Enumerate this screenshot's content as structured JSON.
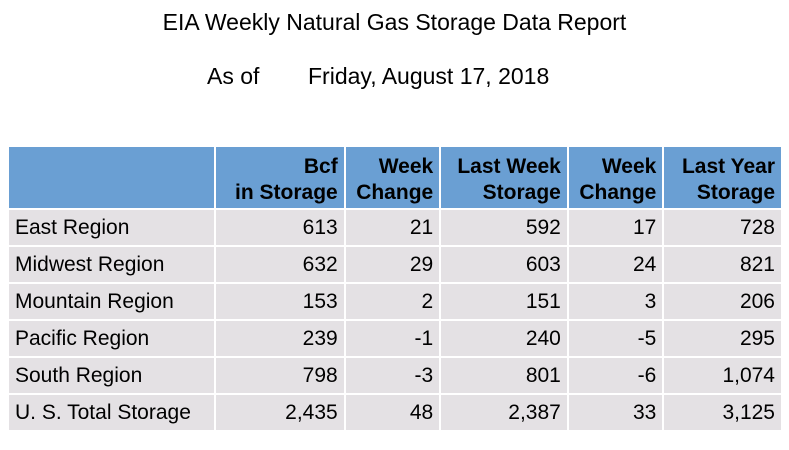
{
  "report": {
    "title": "EIA Weekly Natural Gas Storage Data Report",
    "as_of_label": "As of",
    "as_of_date": "Friday, August 17, 2018"
  },
  "table": {
    "headers": [
      {
        "line1": "",
        "line2": ""
      },
      {
        "line1": "Bcf",
        "line2": "in Storage"
      },
      {
        "line1": "Week",
        "line2": "Change"
      },
      {
        "line1": "Last Week",
        "line2": "Storage"
      },
      {
        "line1": "Week",
        "line2": "Change"
      },
      {
        "line1": "Last Year",
        "line2": "Storage"
      }
    ],
    "rows": [
      [
        "East Region",
        "613",
        "21",
        "592",
        "17",
        "728"
      ],
      [
        "Midwest Region",
        "632",
        "29",
        "603",
        "24",
        "821"
      ],
      [
        "Mountain Region",
        "153",
        "2",
        "151",
        "3",
        "206"
      ],
      [
        "Pacific Region",
        "239",
        "-1",
        "240",
        "-5",
        "295"
      ],
      [
        "South Region",
        "798",
        "-3",
        "801",
        "-6",
        "1,074"
      ],
      [
        "U. S. Total Storage",
        "2,435",
        "48",
        "2,387",
        "33",
        "3,125"
      ]
    ]
  },
  "colors": {
    "header_background": "#6a9fd3",
    "row_background": "#e4e1e4"
  }
}
